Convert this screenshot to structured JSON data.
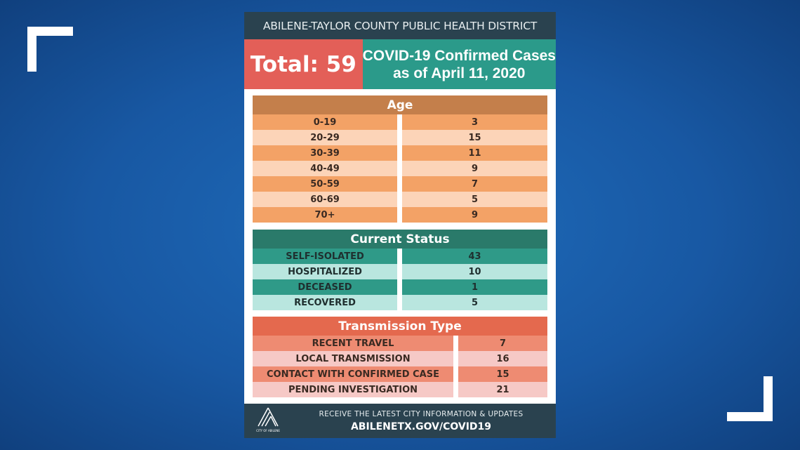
{
  "header": {
    "title": "ABILENE-TAYLOR COUNTY PUBLIC HEALTH DISTRICT"
  },
  "total": "Total: 59",
  "subtitle": {
    "line1": "COVID-19 Confirmed Cases",
    "line2": "as of April 11, 2020"
  },
  "age": {
    "title": "Age",
    "rows": [
      [
        "0-19",
        "3"
      ],
      [
        "20-29",
        "15"
      ],
      [
        "30-39",
        "11"
      ],
      [
        "40-49",
        "9"
      ],
      [
        "50-59",
        "7"
      ],
      [
        "60-69",
        "5"
      ],
      [
        "70+",
        "9"
      ]
    ]
  },
  "status": {
    "title": "Current Status",
    "rows": [
      [
        "SELF-ISOLATED",
        "43"
      ],
      [
        "HOSPITALIZED",
        "10"
      ],
      [
        "DECEASED",
        "1"
      ],
      [
        "RECOVERED",
        "5"
      ]
    ]
  },
  "transmission": {
    "title": "Transmission Type",
    "rows": [
      [
        "RECENT TRAVEL",
        "7"
      ],
      [
        "LOCAL TRANSMISSION",
        "16"
      ],
      [
        "CONTACT WITH CONFIRMED CASE",
        "15"
      ],
      [
        "PENDING INVESTIGATION",
        "21"
      ]
    ]
  },
  "footer": {
    "line1": "RECEIVE THE LATEST CITY INFORMATION & UPDATES",
    "line2": "ABILENETX.GOV/COVID19",
    "logo_text": "CITY OF ABILENE"
  },
  "colors": {
    "age_dark": "#f3a266",
    "age_light": "#fcd4b8",
    "status_dark": "#2f9a88",
    "status_light": "#b9e6df",
    "trans_dark": "#ee8b72",
    "trans_light": "#f6c9c6"
  }
}
